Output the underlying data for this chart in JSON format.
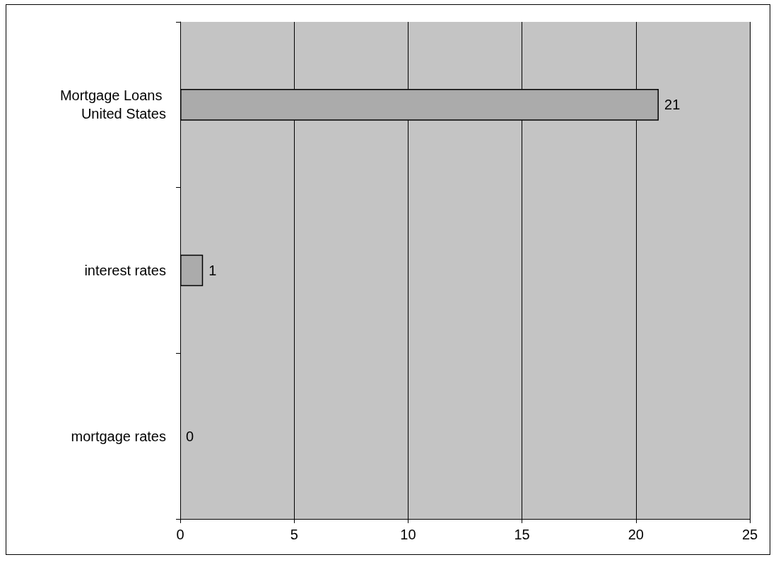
{
  "chart_data": {
    "type": "bar",
    "orientation": "horizontal",
    "categories": [
      "Mortgage Loans United States",
      "interest rates",
      "mortgage rates"
    ],
    "values": [
      21,
      1,
      0
    ],
    "color": "#ababab",
    "xlim": [
      0,
      25
    ],
    "xticks": [
      0,
      5,
      10,
      15,
      20,
      25
    ],
    "grid": "x",
    "data_labels": true
  }
}
